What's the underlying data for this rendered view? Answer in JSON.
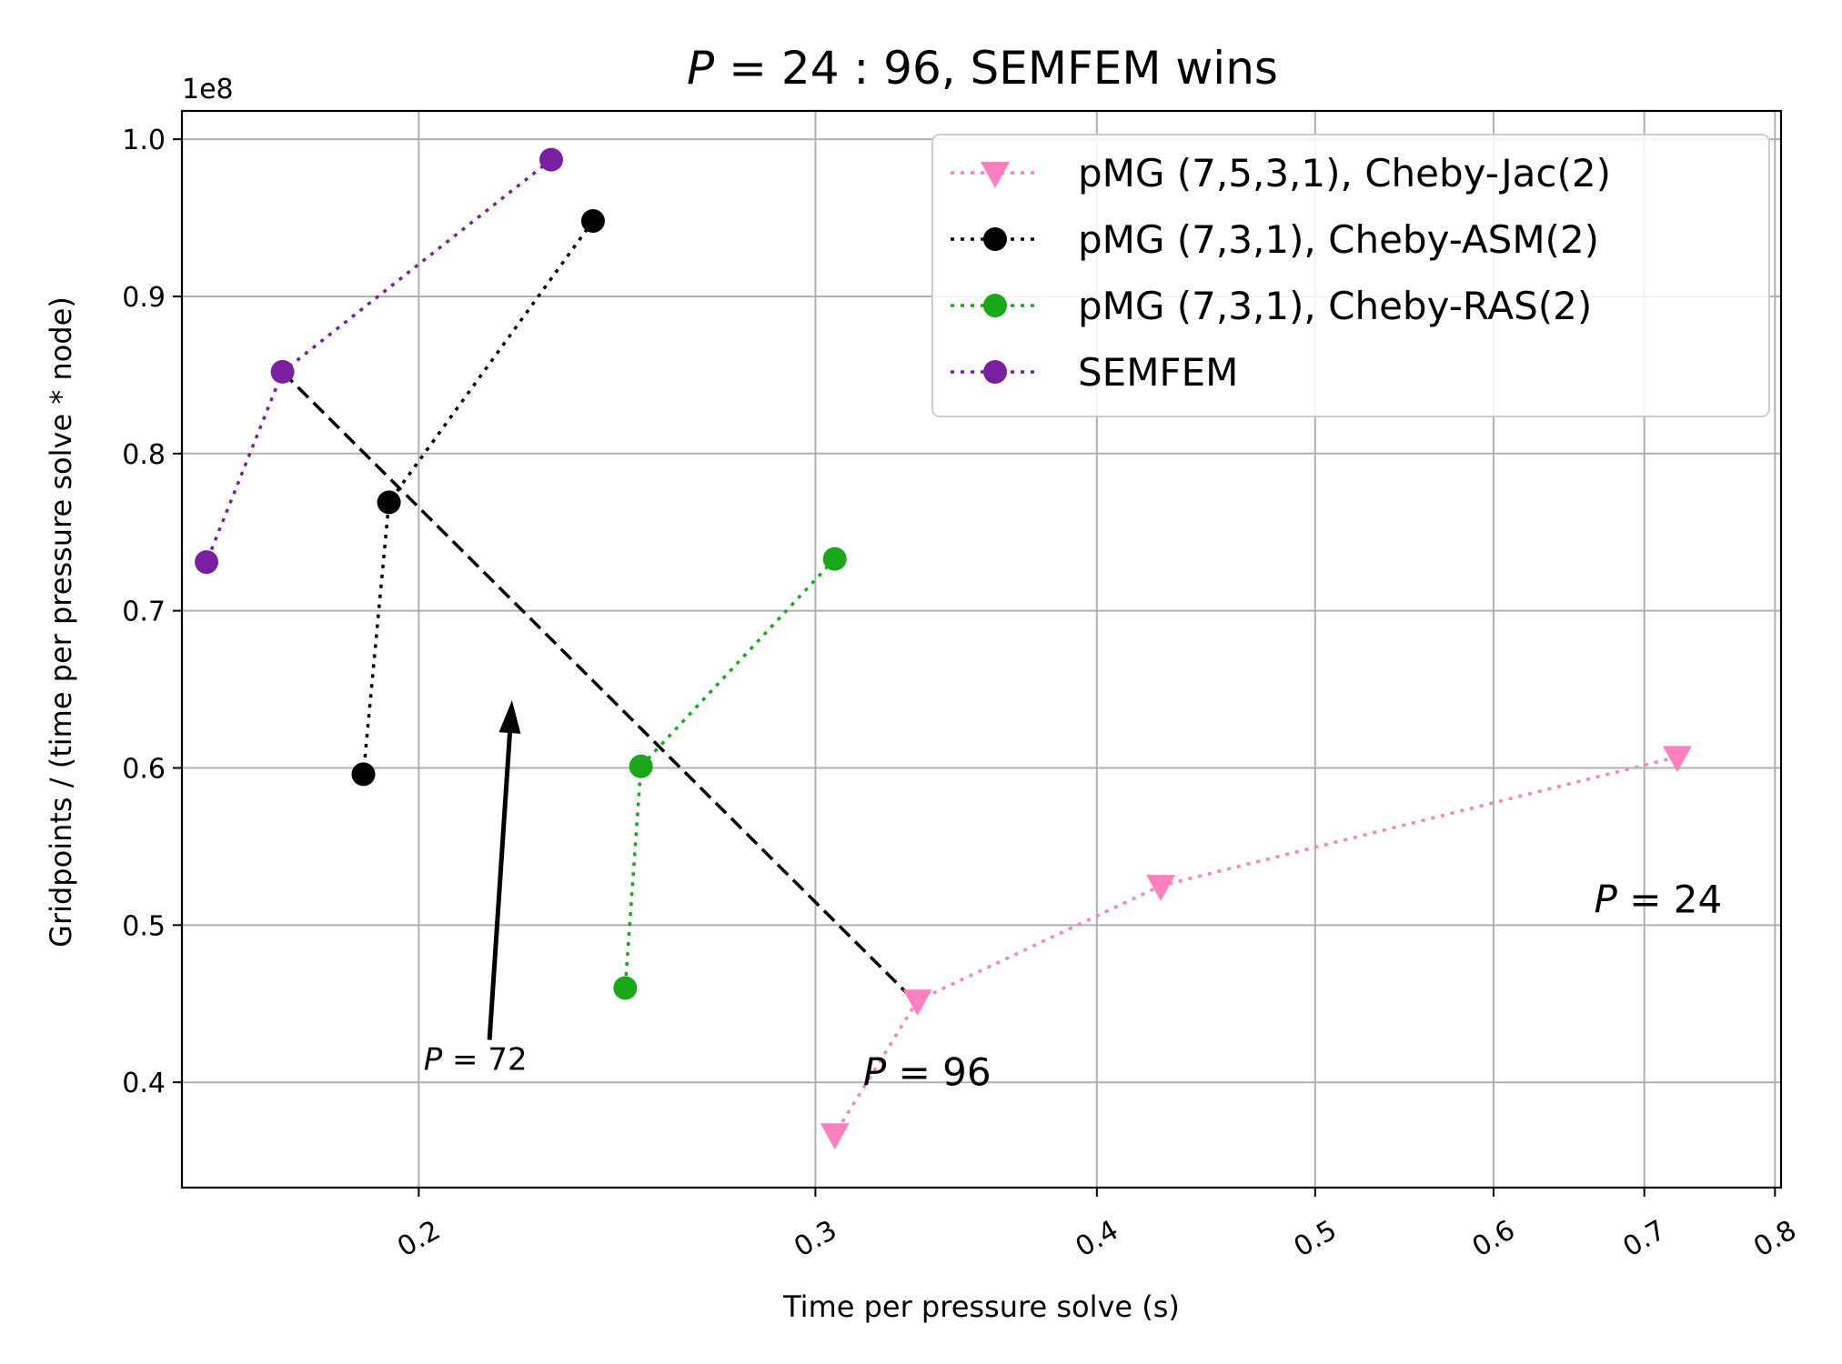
{
  "chart_data": {
    "type": "line",
    "title": "P = 24 : 96, SEMFEM wins",
    "title_italic_part": "P",
    "xlabel": "Time per pressure solve (s)",
    "ylabel": "Gridpoints / (time per pressure solve * node)",
    "y_offset_label": "1e8",
    "x_scale": "log",
    "xlim": [
      0.157,
      0.805
    ],
    "ylim": [
      0.333,
      1.018
    ],
    "grid": true,
    "x_ticks": [
      0.2,
      0.3,
      0.4,
      0.5,
      0.6,
      0.7,
      0.8
    ],
    "x_tick_labels": [
      "0.2",
      "0.3",
      "0.4",
      "0.5",
      "0.6",
      "0.7",
      "0.8"
    ],
    "y_ticks": [
      0.4,
      0.5,
      0.6,
      0.7,
      0.8,
      0.9,
      1.0
    ],
    "y_tick_labels": [
      "0.4",
      "0.5",
      "0.6",
      "0.7",
      "0.8",
      "0.9",
      "1.0"
    ],
    "legend_position": "top-right",
    "series": [
      {
        "name": "pMG (7,5,3,1), Cheby-Jac(2)",
        "color": "#ff7fbf",
        "marker": "triangle-down",
        "line": "dotted",
        "x": [
          0.724,
          0.427,
          0.333,
          0.306
        ],
        "y": [
          0.607,
          0.525,
          0.452,
          0.367
        ]
      },
      {
        "name": "pMG (7,3,1), Cheby-ASM(2)",
        "color": "#000000",
        "marker": "circle",
        "line": "dotted",
        "x": [
          0.239,
          0.194,
          0.189
        ],
        "y": [
          0.948,
          0.769,
          0.596
        ]
      },
      {
        "name": "pMG (7,3,1), Cheby-RAS(2)",
        "color": "#1aa81a",
        "marker": "circle",
        "line": "dotted",
        "x": [
          0.306,
          0.251,
          0.247
        ],
        "y": [
          0.733,
          0.601,
          0.46
        ]
      },
      {
        "name": "SEMFEM",
        "color": "#7b1fa2",
        "marker": "circle",
        "line": "dotted",
        "x": [
          0.229,
          0.174,
          0.161
        ],
        "y": [
          0.987,
          0.852,
          0.731
        ]
      }
    ],
    "dashed_line": {
      "color": "#000000",
      "x": [
        0.174,
        0.333
      ],
      "y": [
        0.852,
        0.45
      ]
    },
    "annotations": [
      {
        "text": "P = 24",
        "x": 0.665,
        "y": 0.508
      },
      {
        "text": "P = 96",
        "x": 0.315,
        "y": 0.398
      },
      {
        "text": "P = 72",
        "x": 0.201,
        "y": 0.408
      }
    ],
    "arrow": {
      "from_x": 0.215,
      "from_y": 0.427,
      "to_x": 0.22,
      "to_y": 0.643
    }
  }
}
